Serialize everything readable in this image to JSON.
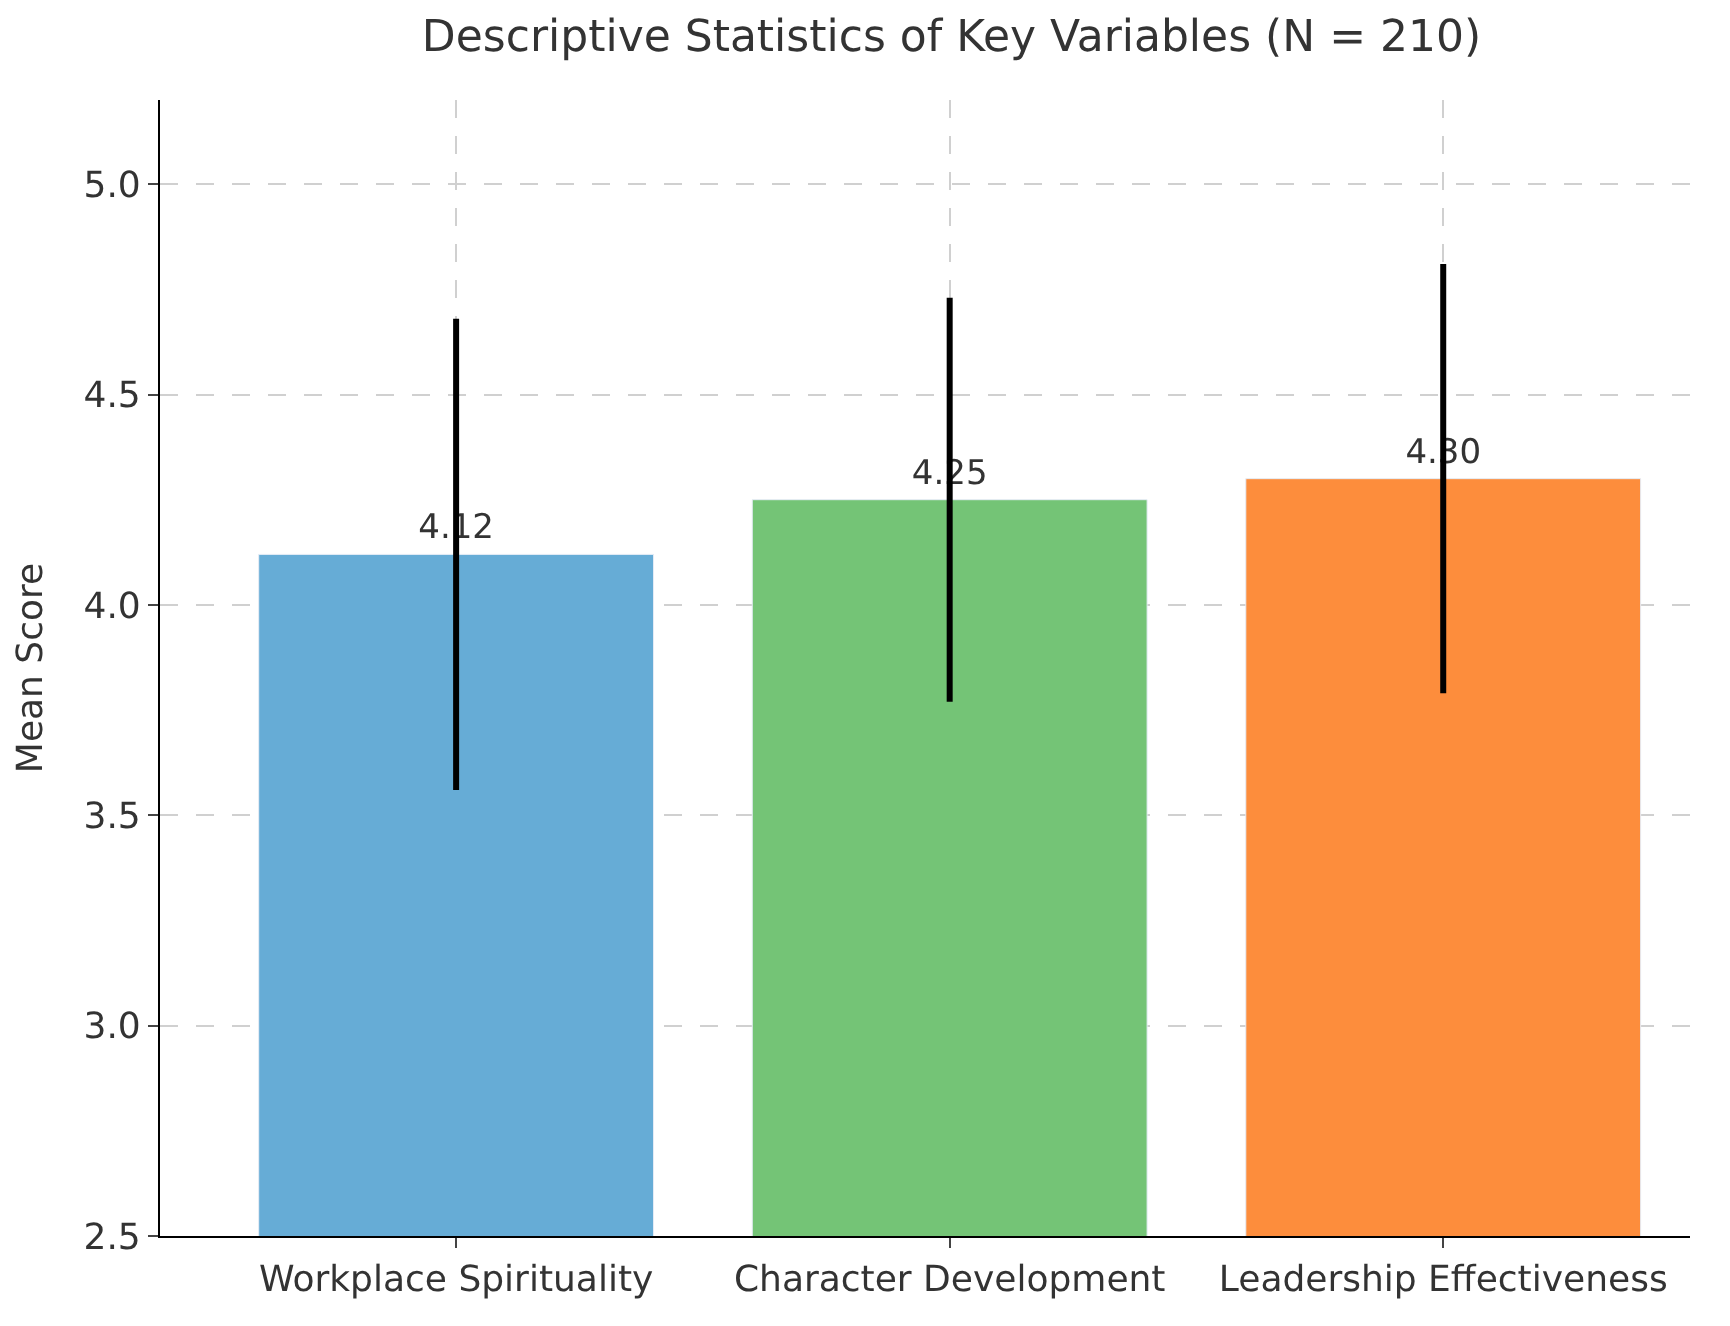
{
  "chart_data": {
    "type": "bar",
    "title": "Descriptive Statistics of Key Variables (N = 210)",
    "ylabel": "Mean Score",
    "categories": [
      "Workplace Spirituality",
      "Character Development",
      "Leadership Effectiveness"
    ],
    "values": [
      4.12,
      4.25,
      4.3
    ],
    "colors": [
      "#66acd6",
      "#74c476",
      "#fd8d3c"
    ],
    "errors": [
      0.56,
      0.48,
      0.51
    ],
    "value_labels": [
      "4.12",
      "4.25",
      "4.30"
    ],
    "ylim": [
      2.5,
      5.2
    ],
    "yticks": [
      {
        "value": 2.5,
        "label": "2.5"
      },
      {
        "value": 3.0,
        "label": "3.0"
      },
      {
        "value": 3.5,
        "label": "3.5"
      },
      {
        "value": 4.0,
        "label": "4.0"
      },
      {
        "value": 4.5,
        "label": "4.5"
      },
      {
        "value": 5.0,
        "label": "5.0"
      }
    ],
    "grid": true,
    "legend": false
  }
}
